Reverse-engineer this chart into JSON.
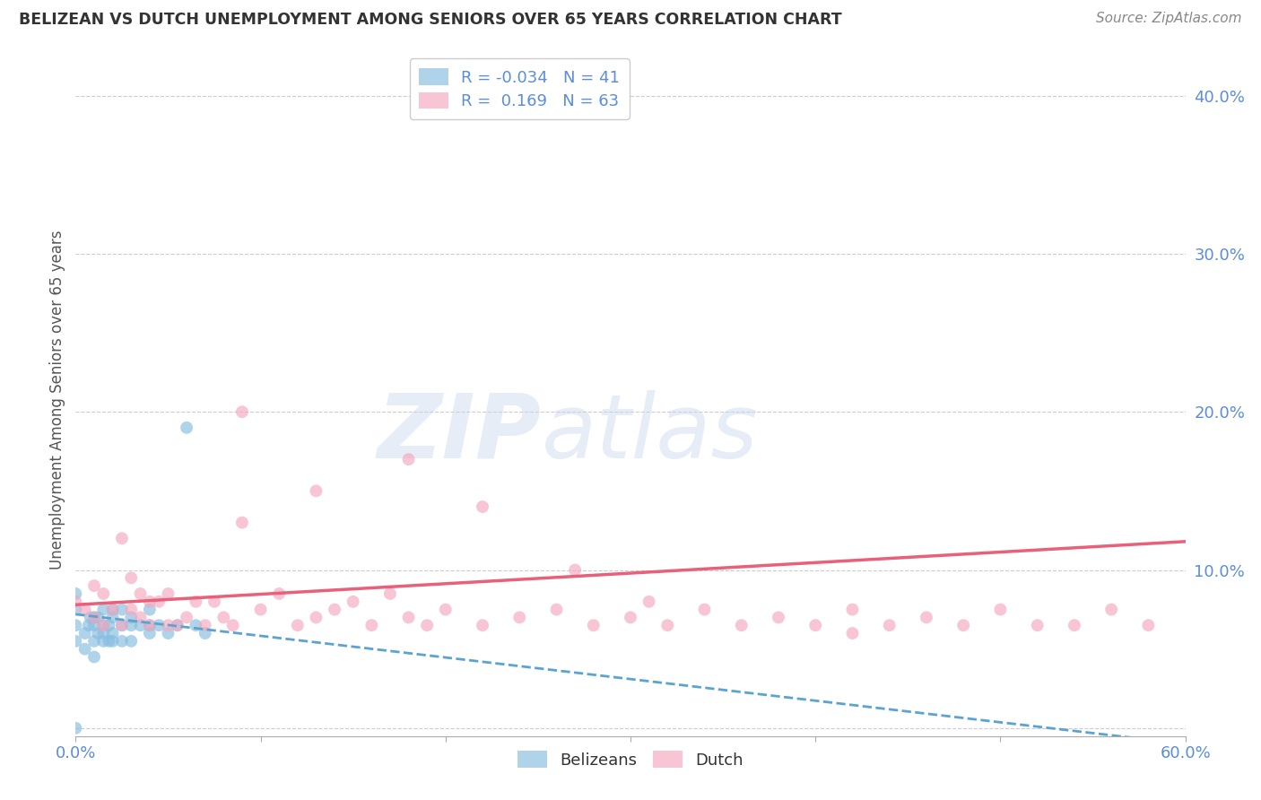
{
  "title": "BELIZEAN VS DUTCH UNEMPLOYMENT AMONG SENIORS OVER 65 YEARS CORRELATION CHART",
  "source": "Source: ZipAtlas.com",
  "ylabel": "Unemployment Among Seniors over 65 years",
  "xlim": [
    0.0,
    0.6
  ],
  "ylim": [
    -0.005,
    0.42
  ],
  "xticks": [
    0.0,
    0.1,
    0.2,
    0.3,
    0.4,
    0.5,
    0.6
  ],
  "xtick_labels": [
    "0.0%",
    "",
    "",
    "",
    "",
    "",
    "60.0%"
  ],
  "yticks": [
    0.0,
    0.1,
    0.2,
    0.3,
    0.4
  ],
  "ytick_labels": [
    "",
    "10.0%",
    "20.0%",
    "30.0%",
    "40.0%"
  ],
  "grid_color": "#cccccc",
  "background_color": "#ffffff",
  "belizean_color": "#85bde0",
  "dutch_color": "#f4a7bc",
  "belizean_R": -0.034,
  "belizean_N": 41,
  "dutch_R": 0.169,
  "dutch_N": 63,
  "belizean_line_color": "#5ba3d0",
  "dutch_line_color": "#e8607a",
  "tick_color": "#5b8dd9",
  "legend_text_color": "#5b8dd9",
  "title_color": "#333333",
  "source_color": "#888888",
  "ylabel_color": "#555555",
  "belizean_x": [
    0.0,
    0.0,
    0.0,
    0.0,
    0.0,
    0.005,
    0.005,
    0.007,
    0.008,
    0.01,
    0.01,
    0.01,
    0.01,
    0.012,
    0.012,
    0.015,
    0.015,
    0.015,
    0.015,
    0.018,
    0.018,
    0.02,
    0.02,
    0.02,
    0.02,
    0.025,
    0.025,
    0.025,
    0.03,
    0.03,
    0.03,
    0.035,
    0.04,
    0.04,
    0.04,
    0.045,
    0.05,
    0.055,
    0.06,
    0.065,
    0.07
  ],
  "belizean_y": [
    0.0,
    0.055,
    0.065,
    0.075,
    0.085,
    0.05,
    0.06,
    0.065,
    0.07,
    0.045,
    0.055,
    0.065,
    0.07,
    0.06,
    0.07,
    0.055,
    0.06,
    0.065,
    0.075,
    0.055,
    0.065,
    0.055,
    0.06,
    0.07,
    0.075,
    0.055,
    0.065,
    0.075,
    0.055,
    0.065,
    0.07,
    0.065,
    0.06,
    0.065,
    0.075,
    0.065,
    0.06,
    0.065,
    0.19,
    0.065,
    0.06
  ],
  "dutch_x": [
    0.0,
    0.005,
    0.01,
    0.01,
    0.015,
    0.015,
    0.02,
    0.025,
    0.025,
    0.03,
    0.03,
    0.035,
    0.035,
    0.04,
    0.04,
    0.045,
    0.05,
    0.05,
    0.055,
    0.06,
    0.065,
    0.07,
    0.075,
    0.08,
    0.085,
    0.09,
    0.1,
    0.11,
    0.12,
    0.13,
    0.14,
    0.15,
    0.16,
    0.17,
    0.18,
    0.19,
    0.2,
    0.22,
    0.24,
    0.26,
    0.28,
    0.3,
    0.32,
    0.34,
    0.36,
    0.38,
    0.4,
    0.42,
    0.44,
    0.46,
    0.48,
    0.5,
    0.52,
    0.54,
    0.56,
    0.58,
    0.18,
    0.09,
    0.13,
    0.22,
    0.27,
    0.31,
    0.42
  ],
  "dutch_y": [
    0.08,
    0.075,
    0.07,
    0.09,
    0.065,
    0.085,
    0.075,
    0.065,
    0.12,
    0.075,
    0.095,
    0.07,
    0.085,
    0.065,
    0.08,
    0.08,
    0.065,
    0.085,
    0.065,
    0.07,
    0.08,
    0.065,
    0.08,
    0.07,
    0.065,
    0.13,
    0.075,
    0.085,
    0.065,
    0.07,
    0.075,
    0.08,
    0.065,
    0.085,
    0.07,
    0.065,
    0.075,
    0.065,
    0.07,
    0.075,
    0.065,
    0.07,
    0.065,
    0.075,
    0.065,
    0.07,
    0.065,
    0.075,
    0.065,
    0.07,
    0.065,
    0.075,
    0.065,
    0.065,
    0.075,
    0.065,
    0.17,
    0.2,
    0.15,
    0.14,
    0.1,
    0.08,
    0.06
  ]
}
